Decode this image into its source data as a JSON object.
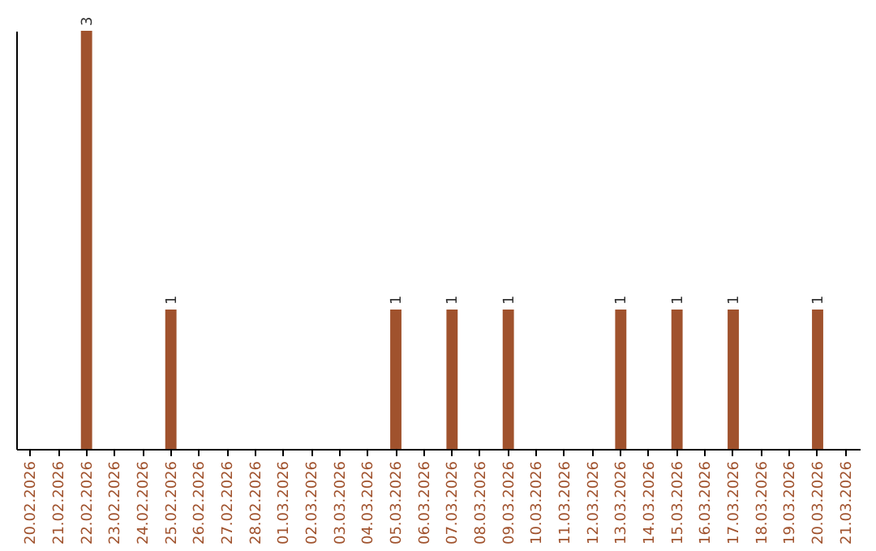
{
  "chart_data": {
    "type": "bar",
    "categories": [
      "20.02.2026",
      "21.02.2026",
      "22.02.2026",
      "23.02.2026",
      "24.02.2026",
      "25.02.2026",
      "26.02.2026",
      "27.02.2026",
      "28.02.2026",
      "01.03.2026",
      "02.03.2026",
      "03.03.2026",
      "04.03.2026",
      "05.03.2026",
      "06.03.2026",
      "07.03.2026",
      "08.03.2026",
      "09.03.2026",
      "10.03.2026",
      "11.03.2026",
      "12.03.2026",
      "13.03.2026",
      "14.03.2026",
      "15.03.2026",
      "16.03.2026",
      "17.03.2026",
      "18.03.2026",
      "19.03.2026",
      "20.03.2026",
      "21.03.2026"
    ],
    "values": [
      0,
      0,
      3,
      0,
      0,
      1,
      0,
      0,
      0,
      0,
      0,
      0,
      0,
      1,
      0,
      1,
      0,
      1,
      0,
      0,
      0,
      1,
      0,
      1,
      0,
      1,
      0,
      0,
      1,
      0
    ],
    "value_labels": [
      null,
      null,
      "3",
      null,
      null,
      "1",
      null,
      null,
      null,
      null,
      null,
      null,
      null,
      "1",
      null,
      "1",
      null,
      "1",
      null,
      null,
      null,
      "1",
      null,
      "1",
      null,
      "1",
      null,
      null,
      "1",
      null
    ],
    "color": "#a0522d",
    "ylim": [
      0,
      3
    ],
    "tick_labels": "x",
    "grid": false
  }
}
